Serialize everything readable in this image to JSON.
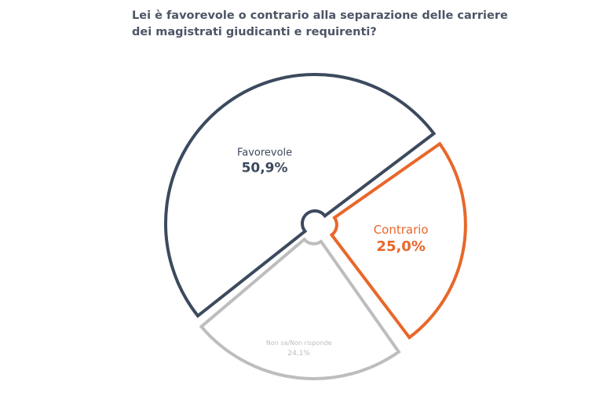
{
  "chart_data": {
    "type": "pie",
    "title": "Lei è favorevole o contrario alla separazione delle carriere dei magistrati giudicanti e requirenti?",
    "slices": [
      {
        "label": "Contrario",
        "value": 25.0,
        "value_label": "25,0%",
        "color": "#e8672a"
      },
      {
        "label": "Non sa/Non risponde",
        "value": 24.1,
        "value_label": "24,1%",
        "color": "#bdbdbd"
      },
      {
        "label": "Favorevole",
        "value": 50.9,
        "value_label": "50,9%",
        "color": "#3c4a5e"
      }
    ],
    "legend": "none",
    "style": "outlined exploded slices"
  }
}
